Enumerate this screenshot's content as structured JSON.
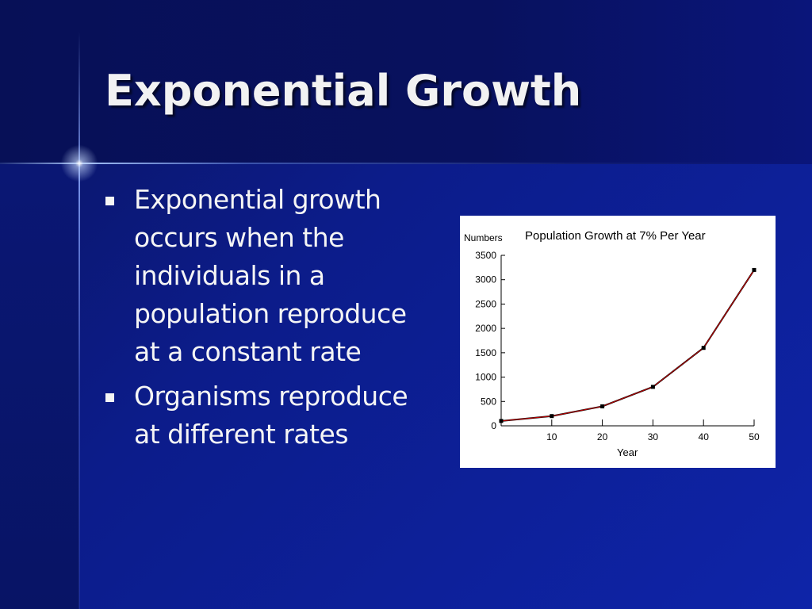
{
  "slide": {
    "title": "Exponential Growth",
    "bullets": [
      "Exponential growth occurs when the individuals in a population reproduce at a constant rate",
      "Organisms reproduce at different rates"
    ]
  },
  "colors": {
    "background": "#0c1c8a",
    "title_band": "#08115e",
    "text": "#f5f5f5",
    "line": "#cc0000",
    "points": "#000000"
  },
  "chart_data": {
    "type": "line",
    "title": "Population Growth at 7% Per Year",
    "ylabel": "Numbers",
    "xlabel": "Year",
    "x": [
      0,
      10,
      20,
      30,
      40,
      50
    ],
    "series": [
      {
        "values": [
          100,
          200,
          400,
          800,
          1600,
          3200
        ]
      }
    ],
    "xlim": [
      0,
      50
    ],
    "ylim": [
      0,
      3500
    ],
    "xticks": [
      10,
      20,
      30,
      40,
      50
    ],
    "yticks": [
      0,
      500,
      1000,
      1500,
      2000,
      2500,
      3000,
      3500
    ],
    "xtick_labels": [
      "10",
      "20",
      "30",
      "40",
      "50"
    ],
    "ytick_labels": [
      "0",
      "500",
      "1000",
      "1500",
      "2000",
      "2500",
      "3000",
      "3500"
    ],
    "grid": false,
    "legend": "none"
  }
}
